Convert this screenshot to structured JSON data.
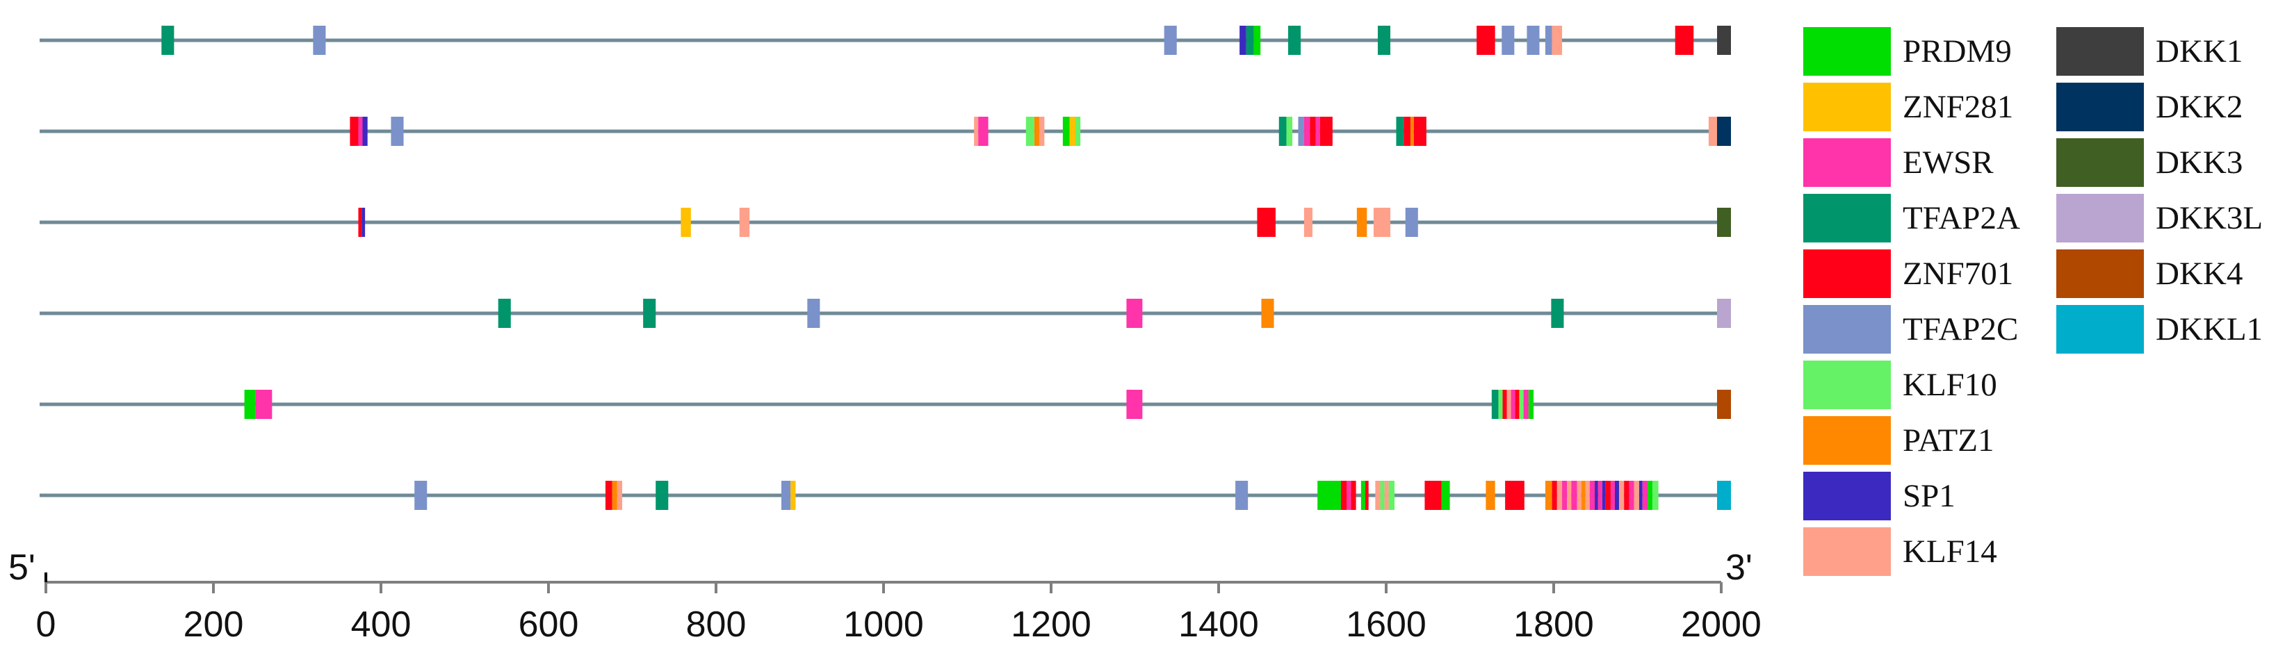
{
  "chart_data": {
    "type": "motif-map",
    "x_axis": {
      "min": 0,
      "max": 2000,
      "ticks": [
        0,
        200,
        400,
        600,
        800,
        1000,
        1200,
        1400,
        1600,
        1800,
        2000
      ],
      "tick_labels": [
        "0",
        "200",
        "400",
        "600",
        "800",
        "1000",
        "1200",
        "1400",
        "1600",
        "1800",
        "2000"
      ],
      "left_label": "5'",
      "right_label": "3'"
    },
    "motif_colors": {
      "PRDM9": "#00dd00",
      "ZNF281": "#ffc000",
      "EWSR": "#ff33aa",
      "TFAP2A": "#00956a",
      "ZNF701": "#ff0018",
      "TFAP2C": "#7a92c9",
      "KLF10": "#66f266",
      "PATZ1": "#ff8800",
      "SP1": "#3c2ac0",
      "KLF14": "#ffa08a",
      "DKK1": "#3e3e3e",
      "DKK2": "#00335f",
      "DKK3": "#405f22",
      "DKK3L": "#b9a5cf",
      "DKK4": "#b04800",
      "DKKL1": "#00adcb"
    },
    "legend": [
      {
        "key": "PRDM9",
        "label": "PRDM9"
      },
      {
        "key": "ZNF281",
        "label": "ZNF281"
      },
      {
        "key": "EWSR",
        "label": "EWSR"
      },
      {
        "key": "TFAP2A",
        "label": "TFAP2A"
      },
      {
        "key": "ZNF701",
        "label": "ZNF701"
      },
      {
        "key": "TFAP2C",
        "label": "TFAP2C"
      },
      {
        "key": "KLF10",
        "label": "KLF10"
      },
      {
        "key": "PATZ1",
        "label": "PATZ1"
      },
      {
        "key": "SP1",
        "label": "SP1"
      },
      {
        "key": "KLF14",
        "label": "KLF14"
      },
      {
        "key": "DKK1",
        "label": "DKK1"
      },
      {
        "key": "DKK2",
        "label": "DKK2"
      },
      {
        "key": "DKK3",
        "label": "DKK3"
      },
      {
        "key": "DKK3L",
        "label": "DKK3L"
      },
      {
        "key": "DKK4",
        "label": "DKK4"
      },
      {
        "key": "DKKL1",
        "label": "DKKL1"
      }
    ],
    "rows": [
      {
        "gene": "DKK1",
        "motifs": [
          {
            "type": "TFAP2A",
            "start": 138,
            "end": 153
          },
          {
            "type": "TFAP2C",
            "start": 319,
            "end": 334
          },
          {
            "type": "TFAP2C",
            "start": 1335,
            "end": 1350
          },
          {
            "type": "SP1",
            "start": 1425,
            "end": 1433
          },
          {
            "type": "TFAP2A",
            "start": 1433,
            "end": 1442
          },
          {
            "type": "PRDM9",
            "start": 1442,
            "end": 1450
          },
          {
            "type": "TFAP2A",
            "start": 1483,
            "end": 1498
          },
          {
            "type": "TFAP2A",
            "start": 1590,
            "end": 1605
          },
          {
            "type": "ZNF701",
            "start": 1708,
            "end": 1730
          },
          {
            "type": "TFAP2C",
            "start": 1738,
            "end": 1753
          },
          {
            "type": "TFAP2C",
            "start": 1768,
            "end": 1783
          },
          {
            "type": "TFAP2C",
            "start": 1790,
            "end": 1798
          },
          {
            "type": "KLF14",
            "start": 1798,
            "end": 1810
          },
          {
            "type": "ZNF701",
            "start": 1945,
            "end": 1967
          }
        ]
      },
      {
        "gene": "DKK2",
        "motifs": [
          {
            "type": "ZNF701",
            "start": 363,
            "end": 373
          },
          {
            "type": "EWSR",
            "start": 373,
            "end": 378
          },
          {
            "type": "SP1",
            "start": 378,
            "end": 384
          },
          {
            "type": "TFAP2C",
            "start": 412,
            "end": 427
          },
          {
            "type": "KLF14",
            "start": 1108,
            "end": 1113
          },
          {
            "type": "EWSR",
            "start": 1113,
            "end": 1125
          },
          {
            "type": "KLF10",
            "start": 1170,
            "end": 1180
          },
          {
            "type": "PATZ1",
            "start": 1180,
            "end": 1186
          },
          {
            "type": "KLF14",
            "start": 1186,
            "end": 1192
          },
          {
            "type": "PRDM9",
            "start": 1214,
            "end": 1222
          },
          {
            "type": "ZNF281",
            "start": 1222,
            "end": 1229
          },
          {
            "type": "KLF10",
            "start": 1229,
            "end": 1235
          },
          {
            "type": "TFAP2A",
            "start": 1472,
            "end": 1481
          },
          {
            "type": "KLF10",
            "start": 1481,
            "end": 1488
          },
          {
            "type": "TFAP2C",
            "start": 1495,
            "end": 1502
          },
          {
            "type": "EWSR",
            "start": 1502,
            "end": 1509
          },
          {
            "type": "ZNF701",
            "start": 1509,
            "end": 1516
          },
          {
            "type": "EWSR",
            "start": 1516,
            "end": 1521
          },
          {
            "type": "ZNF701",
            "start": 1521,
            "end": 1536
          },
          {
            "type": "TFAP2A",
            "start": 1612,
            "end": 1621
          },
          {
            "type": "ZNF701",
            "start": 1621,
            "end": 1629
          },
          {
            "type": "PATZ1",
            "start": 1629,
            "end": 1633
          },
          {
            "type": "ZNF701",
            "start": 1633,
            "end": 1648
          },
          {
            "type": "KLF14",
            "start": 1985,
            "end": 2000
          }
        ]
      },
      {
        "gene": "DKK3",
        "motifs": [
          {
            "type": "ZNF701",
            "start": 373,
            "end": 377
          },
          {
            "type": "SP1",
            "start": 377,
            "end": 381
          },
          {
            "type": "ZNF281",
            "start": 758,
            "end": 770
          },
          {
            "type": "KLF14",
            "start": 828,
            "end": 840
          },
          {
            "type": "ZNF701",
            "start": 1446,
            "end": 1468
          },
          {
            "type": "KLF14",
            "start": 1502,
            "end": 1512
          },
          {
            "type": "PATZ1",
            "start": 1565,
            "end": 1577
          },
          {
            "type": "KLF14",
            "start": 1585,
            "end": 1605
          },
          {
            "type": "TFAP2C",
            "start": 1623,
            "end": 1638
          }
        ]
      },
      {
        "gene": "DKK3L",
        "motifs": [
          {
            "type": "TFAP2A",
            "start": 540,
            "end": 555
          },
          {
            "type": "TFAP2A",
            "start": 713,
            "end": 728
          },
          {
            "type": "TFAP2C",
            "start": 909,
            "end": 924
          },
          {
            "type": "EWSR",
            "start": 1290,
            "end": 1309
          },
          {
            "type": "PATZ1",
            "start": 1451,
            "end": 1466
          },
          {
            "type": "TFAP2A",
            "start": 1797,
            "end": 1812
          }
        ]
      },
      {
        "gene": "DKK4",
        "motifs": [
          {
            "type": "PRDM9",
            "start": 237,
            "end": 250
          },
          {
            "type": "EWSR",
            "start": 250,
            "end": 270
          },
          {
            "type": "EWSR",
            "start": 1290,
            "end": 1309
          },
          {
            "type": "TFAP2A",
            "start": 1726,
            "end": 1734
          },
          {
            "type": "KLF10",
            "start": 1734,
            "end": 1739
          },
          {
            "type": "ZNF701",
            "start": 1739,
            "end": 1744
          },
          {
            "type": "KLF14",
            "start": 1744,
            "end": 1749
          },
          {
            "type": "EWSR",
            "start": 1749,
            "end": 1754
          },
          {
            "type": "ZNF701",
            "start": 1754,
            "end": 1759
          },
          {
            "type": "KLF10",
            "start": 1759,
            "end": 1764
          },
          {
            "type": "EWSR",
            "start": 1764,
            "end": 1770
          },
          {
            "type": "PRDM9",
            "start": 1770,
            "end": 1776
          }
        ]
      },
      {
        "gene": "DKKL1",
        "motifs": [
          {
            "type": "TFAP2C",
            "start": 440,
            "end": 455
          },
          {
            "type": "ZNF701",
            "start": 668,
            "end": 676
          },
          {
            "type": "PATZ1",
            "start": 676,
            "end": 682
          },
          {
            "type": "KLF14",
            "start": 682,
            "end": 688
          },
          {
            "type": "TFAP2A",
            "start": 728,
            "end": 743
          },
          {
            "type": "TFAP2C",
            "start": 878,
            "end": 889
          },
          {
            "type": "ZNF281",
            "start": 889,
            "end": 895
          },
          {
            "type": "TFAP2C",
            "start": 1420,
            "end": 1435
          },
          {
            "type": "PRDM9",
            "start": 1518,
            "end": 1546
          },
          {
            "type": "ZNF701",
            "start": 1546,
            "end": 1553
          },
          {
            "type": "EWSR",
            "start": 1553,
            "end": 1558
          },
          {
            "type": "ZNF701",
            "start": 1558,
            "end": 1564
          },
          {
            "type": "PRDM9",
            "start": 1570,
            "end": 1575
          },
          {
            "type": "ZNF701",
            "start": 1575,
            "end": 1579
          },
          {
            "type": "KLF14",
            "start": 1587,
            "end": 1593
          },
          {
            "type": "KLF10",
            "start": 1593,
            "end": 1598
          },
          {
            "type": "KLF14",
            "start": 1598,
            "end": 1603
          },
          {
            "type": "KLF10",
            "start": 1603,
            "end": 1610
          },
          {
            "type": "ZNF701",
            "start": 1646,
            "end": 1666
          },
          {
            "type": "PRDM9",
            "start": 1666,
            "end": 1676
          },
          {
            "type": "PATZ1",
            "start": 1719,
            "end": 1730
          },
          {
            "type": "ZNF701",
            "start": 1742,
            "end": 1765
          },
          {
            "type": "PATZ1",
            "start": 1790,
            "end": 1798
          },
          {
            "type": "ZNF701",
            "start": 1798,
            "end": 1804
          },
          {
            "type": "KLF14",
            "start": 1804,
            "end": 1810
          },
          {
            "type": "EWSR",
            "start": 1810,
            "end": 1816
          },
          {
            "type": "KLF14",
            "start": 1816,
            "end": 1821
          },
          {
            "type": "EWSR",
            "start": 1821,
            "end": 1828
          },
          {
            "type": "KLF14",
            "start": 1828,
            "end": 1833
          },
          {
            "type": "PATZ1",
            "start": 1833,
            "end": 1838
          },
          {
            "type": "KLF14",
            "start": 1838,
            "end": 1843
          },
          {
            "type": "EWSR",
            "start": 1843,
            "end": 1849
          },
          {
            "type": "SP1",
            "start": 1849,
            "end": 1853
          },
          {
            "type": "EWSR",
            "start": 1853,
            "end": 1858
          },
          {
            "type": "SP1",
            "start": 1858,
            "end": 1862
          },
          {
            "type": "ZNF701",
            "start": 1862,
            "end": 1868
          },
          {
            "type": "EWSR",
            "start": 1868,
            "end": 1873
          },
          {
            "type": "SP1",
            "start": 1873,
            "end": 1878
          },
          {
            "type": "KLF14",
            "start": 1878,
            "end": 1884
          },
          {
            "type": "ZNF701",
            "start": 1884,
            "end": 1890
          },
          {
            "type": "EWSR",
            "start": 1890,
            "end": 1896
          },
          {
            "type": "KLF14",
            "start": 1896,
            "end": 1902
          },
          {
            "type": "SP1",
            "start": 1902,
            "end": 1906
          },
          {
            "type": "EWSR",
            "start": 1906,
            "end": 1912
          },
          {
            "type": "PRDM9",
            "start": 1912,
            "end": 1918
          },
          {
            "type": "KLF10",
            "start": 1918,
            "end": 1925
          }
        ]
      }
    ]
  }
}
